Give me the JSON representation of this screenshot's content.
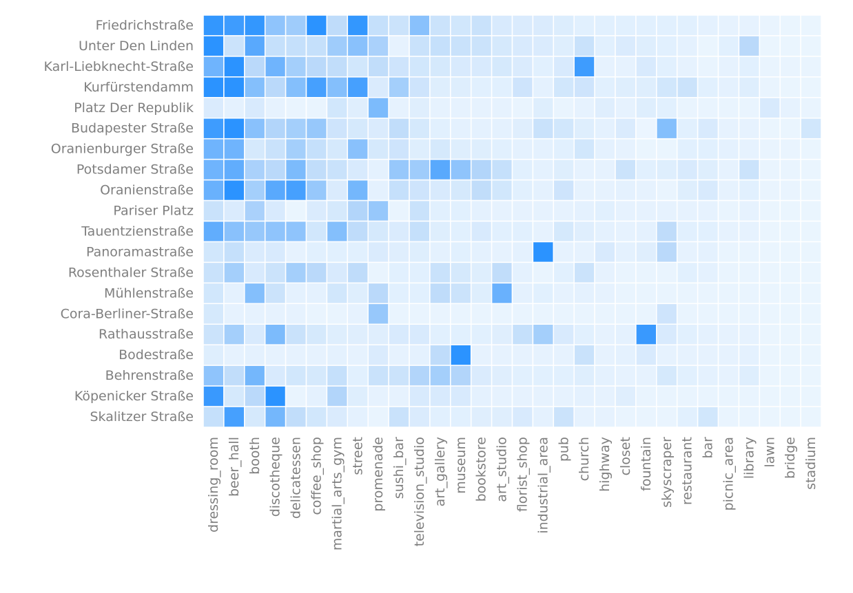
{
  "chart_data": {
    "type": "heatmap",
    "title": "",
    "xlabel": "",
    "ylabel": "",
    "colorscale": {
      "low": "#f0f8ff",
      "mid": "#bfdcfa",
      "high": "#1e8cff",
      "vmin": 0,
      "vmax": 1
    },
    "cell_border_color": "#ffffff",
    "rows": [
      "Friedrichstraße",
      "Unter Den Linden",
      "Karl-Liebknecht-Straße",
      "Kurfürstendamm",
      "Platz Der Republik",
      "Budapester Straße",
      "Oranienburger Straße",
      "Potsdamer Straße",
      "Oranienstraße",
      "Pariser Platz",
      "Tauentzienstraße",
      "Panoramastraße",
      "Rosenthaler Straße",
      "Mühlenstraße",
      "Cora-Berliner-Straße",
      "Rathausstraße",
      "Bodestraße",
      "Behrenstraße",
      "Köpenicker Straße",
      "Skalitzer Straße"
    ],
    "columns": [
      "dressing_room",
      "beer_hall",
      "booth",
      "discotheque",
      "delicatessen",
      "coffee_shop",
      "martial_arts_gym",
      "street",
      "promenade",
      "sushi_bar",
      "television_studio",
      "art_gallery",
      "museum",
      "bookstore",
      "art_studio",
      "florist_shop",
      "industrial_area",
      "pub",
      "church",
      "highway",
      "closet",
      "fountain",
      "skyscraper",
      "restaurant",
      "bar",
      "picnic_area",
      "library",
      "lawn",
      "bridge",
      "stadium"
    ],
    "values": [
      [
        0.92,
        0.88,
        0.92,
        0.58,
        0.52,
        0.95,
        0.4,
        0.92,
        0.35,
        0.3,
        0.6,
        0.3,
        0.25,
        0.32,
        0.2,
        0.18,
        0.18,
        0.16,
        0.12,
        0.12,
        0.12,
        0.12,
        0.12,
        0.12,
        0.1,
        0.08,
        0.08,
        0.06,
        0.05,
        0.05
      ],
      [
        0.95,
        0.3,
        0.78,
        0.35,
        0.35,
        0.35,
        0.52,
        0.6,
        0.48,
        0.08,
        0.32,
        0.35,
        0.32,
        0.3,
        0.22,
        0.2,
        0.18,
        0.15,
        0.32,
        0.12,
        0.18,
        0.15,
        0.12,
        0.1,
        0.05,
        0.12,
        0.42,
        0.05,
        0.05,
        0.05
      ],
      [
        0.7,
        0.95,
        0.42,
        0.7,
        0.5,
        0.42,
        0.38,
        0.25,
        0.38,
        0.28,
        0.25,
        0.22,
        0.2,
        0.2,
        0.22,
        0.18,
        0.12,
        0.2,
        0.88,
        0.08,
        0.08,
        0.2,
        0.12,
        0.08,
        0.06,
        0.08,
        0.12,
        0.06,
        0.06,
        0.06
      ],
      [
        0.95,
        0.95,
        0.62,
        0.42,
        0.62,
        0.85,
        0.62,
        0.85,
        0.18,
        0.5,
        0.28,
        0.15,
        0.15,
        0.12,
        0.12,
        0.28,
        0.1,
        0.25,
        0.28,
        0.12,
        0.15,
        0.15,
        0.25,
        0.3,
        0.12,
        0.1,
        0.15,
        0.06,
        0.05,
        0.05
      ],
      [
        0.18,
        0.1,
        0.2,
        0.08,
        0.06,
        0.06,
        0.25,
        0.14,
        0.65,
        0.08,
        0.14,
        0.08,
        0.08,
        0.08,
        0.08,
        0.06,
        0.15,
        0.06,
        0.08,
        0.14,
        0.08,
        0.15,
        0.12,
        0.06,
        0.06,
        0.06,
        0.06,
        0.2,
        0.08,
        0.06
      ],
      [
        0.88,
        0.95,
        0.6,
        0.45,
        0.5,
        0.55,
        0.28,
        0.22,
        0.18,
        0.38,
        0.22,
        0.12,
        0.1,
        0.1,
        0.1,
        0.14,
        0.32,
        0.25,
        0.15,
        0.1,
        0.18,
        0.04,
        0.62,
        0.12,
        0.2,
        0.08,
        0.08,
        0.05,
        0.05,
        0.25
      ],
      [
        0.7,
        0.7,
        0.22,
        0.32,
        0.5,
        0.35,
        0.22,
        0.6,
        0.22,
        0.28,
        0.15,
        0.22,
        0.15,
        0.15,
        0.12,
        0.1,
        0.1,
        0.12,
        0.25,
        0.1,
        0.08,
        0.05,
        0.05,
        0.12,
        0.12,
        0.1,
        0.08,
        0.06,
        0.06,
        0.05
      ],
      [
        0.7,
        0.75,
        0.48,
        0.42,
        0.65,
        0.38,
        0.32,
        0.2,
        0.1,
        0.55,
        0.52,
        0.78,
        0.58,
        0.45,
        0.35,
        0.12,
        0.1,
        0.15,
        0.08,
        0.08,
        0.3,
        0.12,
        0.15,
        0.2,
        0.15,
        0.08,
        0.3,
        0.06,
        0.06,
        0.05
      ],
      [
        0.72,
        0.95,
        0.5,
        0.78,
        0.85,
        0.55,
        0.18,
        0.68,
        0.1,
        0.35,
        0.28,
        0.2,
        0.22,
        0.38,
        0.25,
        0.12,
        0.1,
        0.28,
        0.08,
        0.08,
        0.1,
        0.08,
        0.06,
        0.15,
        0.2,
        0.08,
        0.12,
        0.06,
        0.06,
        0.05
      ],
      [
        0.32,
        0.18,
        0.48,
        0.2,
        0.05,
        0.18,
        0.22,
        0.45,
        0.55,
        0.06,
        0.32,
        0.12,
        0.12,
        0.1,
        0.08,
        0.08,
        0.08,
        0.08,
        0.1,
        0.12,
        0.08,
        0.08,
        0.08,
        0.08,
        0.08,
        0.06,
        0.08,
        0.05,
        0.05,
        0.05
      ],
      [
        0.75,
        0.6,
        0.55,
        0.58,
        0.58,
        0.25,
        0.62,
        0.4,
        0.22,
        0.18,
        0.35,
        0.15,
        0.12,
        0.2,
        0.12,
        0.12,
        0.08,
        0.22,
        0.14,
        0.1,
        0.08,
        0.1,
        0.4,
        0.12,
        0.12,
        0.08,
        0.08,
        0.05,
        0.05,
        0.05
      ],
      [
        0.25,
        0.35,
        0.18,
        0.2,
        0.08,
        0.12,
        0.12,
        0.12,
        0.18,
        0.14,
        0.15,
        0.1,
        0.12,
        0.1,
        0.08,
        0.1,
        0.95,
        0.08,
        0.08,
        0.2,
        0.1,
        0.14,
        0.42,
        0.08,
        0.1,
        0.06,
        0.06,
        0.05,
        0.05,
        0.05
      ],
      [
        0.32,
        0.5,
        0.2,
        0.3,
        0.5,
        0.42,
        0.2,
        0.4,
        0.06,
        0.12,
        0.12,
        0.32,
        0.22,
        0.15,
        0.38,
        0.1,
        0.06,
        0.12,
        0.3,
        0.08,
        0.06,
        0.06,
        0.06,
        0.12,
        0.1,
        0.06,
        0.06,
        0.05,
        0.05,
        0.05
      ],
      [
        0.25,
        0.1,
        0.62,
        0.3,
        0.1,
        0.1,
        0.25,
        0.15,
        0.42,
        0.12,
        0.12,
        0.4,
        0.3,
        0.15,
        0.72,
        0.1,
        0.12,
        0.08,
        0.1,
        0.08,
        0.06,
        0.06,
        0.06,
        0.06,
        0.06,
        0.06,
        0.06,
        0.05,
        0.05,
        0.05
      ],
      [
        0.22,
        0.08,
        0.08,
        0.08,
        0.08,
        0.06,
        0.06,
        0.08,
        0.55,
        0.06,
        0.06,
        0.06,
        0.06,
        0.06,
        0.06,
        0.06,
        0.06,
        0.06,
        0.06,
        0.06,
        0.06,
        0.06,
        0.28,
        0.06,
        0.06,
        0.06,
        0.06,
        0.05,
        0.05,
        0.05
      ],
      [
        0.3,
        0.5,
        0.2,
        0.65,
        0.32,
        0.22,
        0.15,
        0.14,
        0.14,
        0.2,
        0.2,
        0.12,
        0.12,
        0.12,
        0.14,
        0.35,
        0.5,
        0.2,
        0.12,
        0.08,
        0.1,
        0.9,
        0.2,
        0.12,
        0.1,
        0.08,
        0.08,
        0.05,
        0.05,
        0.05
      ],
      [
        0.15,
        0.08,
        0.1,
        0.08,
        0.08,
        0.08,
        0.1,
        0.08,
        0.18,
        0.08,
        0.1,
        0.4,
        0.95,
        0.08,
        0.08,
        0.08,
        0.08,
        0.08,
        0.32,
        0.08,
        0.1,
        0.2,
        0.08,
        0.08,
        0.08,
        0.08,
        0.1,
        0.05,
        0.05,
        0.05
      ],
      [
        0.58,
        0.38,
        0.68,
        0.2,
        0.25,
        0.22,
        0.35,
        0.12,
        0.32,
        0.3,
        0.45,
        0.5,
        0.45,
        0.18,
        0.14,
        0.12,
        0.12,
        0.12,
        0.15,
        0.1,
        0.08,
        0.08,
        0.22,
        0.12,
        0.1,
        0.08,
        0.15,
        0.05,
        0.05,
        0.05
      ],
      [
        0.9,
        0.22,
        0.42,
        0.95,
        0.06,
        0.1,
        0.45,
        0.15,
        0.08,
        0.08,
        0.2,
        0.2,
        0.2,
        0.1,
        0.08,
        0.08,
        0.08,
        0.08,
        0.1,
        0.08,
        0.14,
        0.06,
        0.06,
        0.06,
        0.06,
        0.06,
        0.06,
        0.05,
        0.05,
        0.05
      ],
      [
        0.35,
        0.85,
        0.22,
        0.68,
        0.38,
        0.25,
        0.18,
        0.1,
        0.06,
        0.32,
        0.18,
        0.12,
        0.12,
        0.14,
        0.14,
        0.2,
        0.1,
        0.3,
        0.08,
        0.08,
        0.06,
        0.06,
        0.06,
        0.12,
        0.25,
        0.06,
        0.06,
        0.05,
        0.05,
        0.05
      ]
    ]
  }
}
